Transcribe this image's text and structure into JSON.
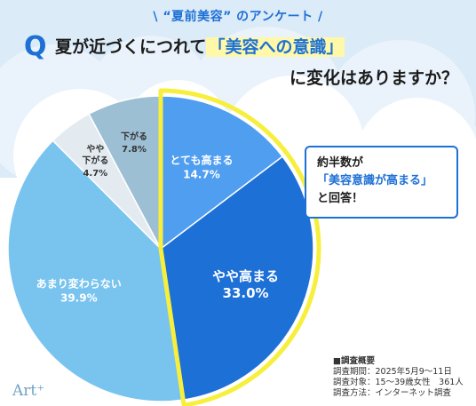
{
  "header": {
    "kicker": "\\ “夏前美容” のアンケート /",
    "q_badge": "Q",
    "title_part1": "夏が近づくにつれて",
    "title_highlight": "「美容への意識」",
    "title_part2": "に変化はありますか？"
  },
  "callout": {
    "line1": "約半数が",
    "line2": "「美容意識が高まる」",
    "line3": "と回答！"
  },
  "survey": {
    "title": "■調査概要",
    "period": "調査期間：2025年5月9～11日",
    "target": "調査対象：15～39歳女性　361人",
    "method": "調査方法：インターネット調査"
  },
  "brand": {
    "text": "Art⁺"
  },
  "colors": {
    "accent": "#1d70d6",
    "highlight_bg": "#fff8a8",
    "highlight_border": "#f7ef3c"
  },
  "chart_data": {
    "type": "pie",
    "start_angle_deg": 0,
    "direction": "clockwise",
    "slices": [
      {
        "label": "とても高まる",
        "value": 14.7,
        "display": "14.7%",
        "color": "#4f9ef0",
        "text_color": "#ffffff",
        "highlight": true
      },
      {
        "label": "やや高まる",
        "value": 33.0,
        "display": "33.0%",
        "color": "#1d70d6",
        "text_color": "#ffffff",
        "highlight": true
      },
      {
        "label": "あまり変わらない",
        "value": 39.9,
        "display": "39.9%",
        "color": "#79c4ef",
        "text_color": "#ffffff",
        "highlight": false
      },
      {
        "label": "やや\n下がる",
        "value": 4.7,
        "display": "4.7%",
        "color": "#e3ebf1",
        "text_color": "#333333",
        "highlight": false
      },
      {
        "label": "下がる",
        "value": 7.8,
        "display": "7.8%",
        "color": "#9dbfd3",
        "text_color": "#333333",
        "highlight": false
      }
    ]
  }
}
